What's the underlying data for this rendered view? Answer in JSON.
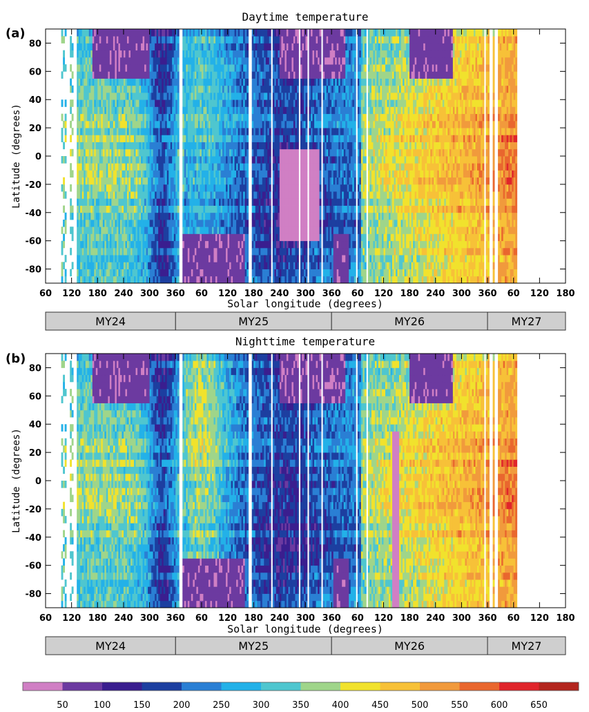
{
  "chart_data": [
    {
      "type": "heatmap",
      "panel_label": "(a)",
      "title": "Daytime temperature",
      "xlabel": "Solar longitude (degrees)",
      "ylabel": "Latitude (degrees)",
      "x_tick_labels": [
        "60",
        "120",
        "180",
        "240",
        "300",
        "360",
        "60",
        "120",
        "180",
        "240",
        "300",
        "360",
        "60",
        "120",
        "180",
        "240",
        "300",
        "360",
        "60",
        "120",
        "180"
      ],
      "y_tick_labels": [
        "80",
        "60",
        "40",
        "20",
        "0",
        "-20",
        "-40",
        "-60",
        "-80"
      ],
      "ylim": [
        -90,
        90
      ],
      "mars_years": [
        "MY24",
        "MY25",
        "MY26",
        "MY27"
      ],
      "data_gaps_ls_continuous": [
        112,
        128,
        372,
        532,
        582,
        645,
        667,
        698,
        777,
        802,
        1075,
        1088,
        1100
      ],
      "features": [
        {
          "name": "north polar cap",
          "lat": [
            57,
            90
          ],
          "ls_continuous": [
            170,
            300
          ]
        },
        {
          "name": "north polar cap",
          "lat": [
            55,
            90
          ],
          "ls_continuous": [
            600,
            750
          ]
        },
        {
          "name": "north polar cap",
          "lat": [
            57,
            90
          ],
          "ls_continuous": [
            900,
            1000
          ]
        },
        {
          "name": "south polar cap",
          "lat": [
            -90,
            -55
          ],
          "ls_continuous": [
            375,
            520
          ]
        },
        {
          "name": "south polar cap",
          "lat": [
            -90,
            -55
          ],
          "ls_continuous": [
            725,
            760
          ]
        },
        {
          "name": "cold equatorial region",
          "lat": [
            -60,
            5
          ],
          "ls_continuous": [
            600,
            690
          ]
        }
      ]
    },
    {
      "type": "heatmap",
      "panel_label": "(b)",
      "title": "Nighttime temperature",
      "xlabel": "Solar longitude (degrees)",
      "ylabel": "Latitude (degrees)",
      "x_tick_labels": [
        "60",
        "120",
        "180",
        "240",
        "300",
        "360",
        "60",
        "120",
        "180",
        "240",
        "300",
        "360",
        "60",
        "120",
        "180",
        "240",
        "300",
        "360",
        "60",
        "120",
        "180"
      ],
      "y_tick_labels": [
        "80",
        "60",
        "40",
        "20",
        "0",
        "-20",
        "-40",
        "-60",
        "-80"
      ],
      "ylim": [
        -90,
        90
      ],
      "mars_years": [
        "MY24",
        "MY25",
        "MY26",
        "MY27"
      ],
      "data_gaps_ls_continuous": [
        112,
        128,
        372,
        532,
        582,
        645,
        667,
        698,
        777,
        802,
        1075,
        1088,
        1100
      ],
      "features": [
        {
          "name": "north polar cap",
          "lat": [
            57,
            90
          ],
          "ls_continuous": [
            170,
            300
          ]
        },
        {
          "name": "north polar cap",
          "lat": [
            55,
            90
          ],
          "ls_continuous": [
            600,
            750
          ]
        },
        {
          "name": "north polar cap",
          "lat": [
            57,
            90
          ],
          "ls_continuous": [
            900,
            1000
          ]
        },
        {
          "name": "south polar cap",
          "lat": [
            -90,
            -55
          ],
          "ls_continuous": [
            375,
            520
          ]
        },
        {
          "name": "south polar cap",
          "lat": [
            -90,
            -55
          ],
          "ls_continuous": [
            725,
            760
          ]
        },
        {
          "name": "cold anomaly",
          "lat": [
            -90,
            35
          ],
          "ls_continuous": [
            860,
            875
          ]
        }
      ]
    }
  ],
  "colorbar": {
    "tick_labels": [
      "50",
      "100",
      "150",
      "200",
      "250",
      "300",
      "350",
      "400",
      "450",
      "500",
      "550",
      "600",
      "650"
    ],
    "colors": [
      "#d07fc4",
      "#6c3aa0",
      "#3a1e8f",
      "#1d3fa0",
      "#2a7fd4",
      "#23b1e8",
      "#4fc6cf",
      "#9fd58a",
      "#f1e22d",
      "#f7c138",
      "#f19a3c",
      "#e9672e",
      "#e0252b",
      "#b3261e"
    ]
  }
}
